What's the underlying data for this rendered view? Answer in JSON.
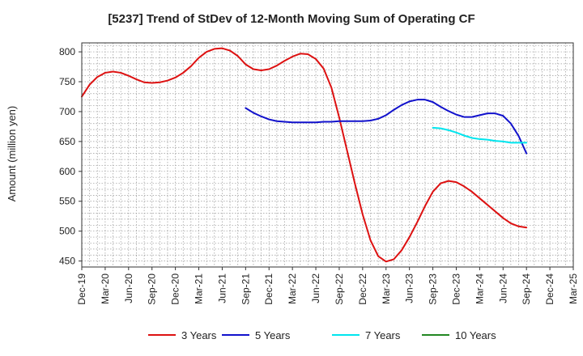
{
  "chart_data": {
    "type": "line",
    "title": "[5237]  Trend of StDev of 12-Month Moving Sum of Operating CF",
    "ylabel": "Amount (million yen)",
    "xlabel": "",
    "ylim": [
      440,
      815
    ],
    "yticks": [
      450,
      500,
      550,
      600,
      650,
      700,
      750,
      800
    ],
    "categories": [
      "Dec-19",
      "Mar-20",
      "Jun-20",
      "Sep-20",
      "Dec-20",
      "Mar-21",
      "Jun-21",
      "Sep-21",
      "Dec-21",
      "Mar-22",
      "Jun-22",
      "Sep-22",
      "Dec-22",
      "Mar-23",
      "Jun-23",
      "Sep-23",
      "Dec-23",
      "Mar-24",
      "Jun-24",
      "Sep-24",
      "Dec-24",
      "Mar-25"
    ],
    "grid": true,
    "legend_position": "bottom",
    "series": [
      {
        "name": "3 Years",
        "color": "#dd1111",
        "x": [
          "Dec-19",
          "Jan-20",
          "Feb-20",
          "Mar-20",
          "Apr-20",
          "May-20",
          "Jun-20",
          "Jul-20",
          "Aug-20",
          "Sep-20",
          "Oct-20",
          "Nov-20",
          "Dec-20",
          "Jan-21",
          "Feb-21",
          "Mar-21",
          "Apr-21",
          "May-21",
          "Jun-21",
          "Jul-21",
          "Aug-21",
          "Sep-21",
          "Oct-21",
          "Nov-21",
          "Dec-21",
          "Jan-22",
          "Feb-22",
          "Mar-22",
          "Apr-22",
          "May-22",
          "Jun-22",
          "Jul-22",
          "Aug-22",
          "Sep-22",
          "Oct-22",
          "Nov-22",
          "Dec-22",
          "Jan-23",
          "Feb-23",
          "Mar-23",
          "Apr-23",
          "May-23",
          "Jun-23",
          "Jul-23",
          "Aug-23",
          "Sep-23",
          "Oct-23",
          "Nov-23",
          "Dec-23",
          "Jan-24",
          "Feb-24",
          "Mar-24",
          "Apr-24",
          "May-24",
          "Jun-24",
          "Jul-24",
          "Aug-24",
          "Sep-24"
        ],
        "values": [
          725,
          745,
          758,
          765,
          767,
          765,
          760,
          754,
          749,
          748,
          749,
          752,
          757,
          765,
          776,
          790,
          800,
          805,
          806,
          802,
          793,
          779,
          771,
          769,
          771,
          777,
          785,
          792,
          797,
          796,
          788,
          772,
          740,
          690,
          635,
          580,
          528,
          485,
          458,
          449,
          453,
          468,
          490,
          515,
          542,
          566,
          580,
          584,
          582,
          575,
          566,
          555,
          544,
          533,
          522,
          513,
          508,
          506
        ]
      },
      {
        "name": "5 Years",
        "color": "#1111cc",
        "x": [
          "Sep-21",
          "Oct-21",
          "Nov-21",
          "Dec-21",
          "Jan-22",
          "Feb-22",
          "Mar-22",
          "Apr-22",
          "May-22",
          "Jun-22",
          "Jul-22",
          "Aug-22",
          "Sep-22",
          "Oct-22",
          "Nov-22",
          "Dec-22",
          "Jan-23",
          "Feb-23",
          "Mar-23",
          "Apr-23",
          "May-23",
          "Jun-23",
          "Jul-23",
          "Aug-23",
          "Sep-23",
          "Oct-23",
          "Nov-23",
          "Dec-23",
          "Jan-24",
          "Feb-24",
          "Mar-24",
          "Apr-24",
          "May-24",
          "Jun-24",
          "Jul-24",
          "Aug-24",
          "Sep-24"
        ],
        "values": [
          706,
          698,
          692,
          687,
          684,
          683,
          682,
          682,
          682,
          682,
          683,
          683,
          684,
          684,
          684,
          684,
          685,
          688,
          694,
          703,
          711,
          717,
          720,
          720,
          716,
          708,
          701,
          695,
          691,
          691,
          694,
          697,
          697,
          693,
          680,
          659,
          630
        ]
      },
      {
        "name": "7 Years",
        "color": "#00e5ee",
        "x": [
          "Sep-23",
          "Oct-23",
          "Nov-23",
          "Dec-23",
          "Jan-24",
          "Feb-24",
          "Mar-24",
          "Apr-24",
          "May-24",
          "Jun-24",
          "Jul-24",
          "Aug-24",
          "Sep-24"
        ],
        "values": [
          673,
          672,
          669,
          665,
          660,
          656,
          654,
          653,
          651,
          650,
          648,
          648,
          648
        ]
      },
      {
        "name": "10 Years",
        "color": "#228822",
        "x": [],
        "values": []
      }
    ]
  }
}
